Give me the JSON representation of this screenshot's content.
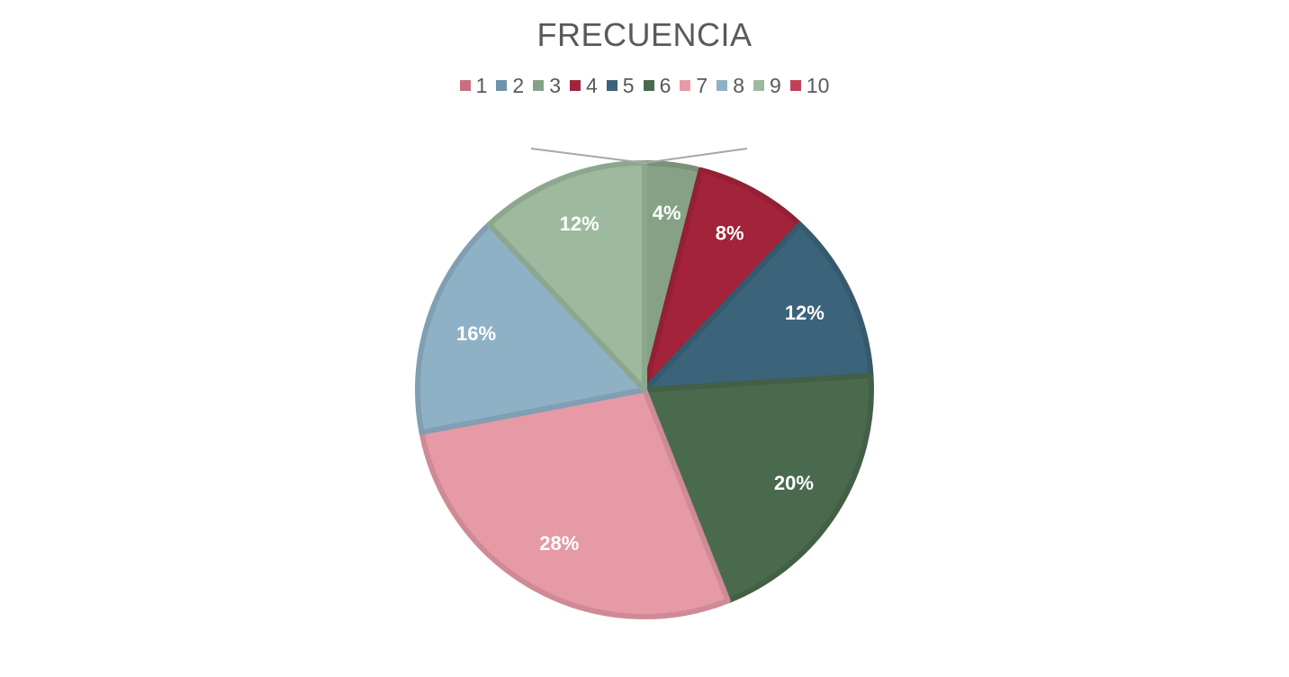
{
  "chart_data": {
    "type": "pie",
    "title": "FRECUENCIA",
    "legend_position": "top",
    "categories": [
      "1",
      "2",
      "3",
      "4",
      "5",
      "6",
      "7",
      "8",
      "9",
      "10"
    ],
    "values": [
      0,
      0,
      4,
      8,
      12,
      20,
      28,
      16,
      12,
      0
    ],
    "data_labels": [
      "",
      "",
      "4%",
      "8%",
      "12%",
      "20%",
      "28%",
      "16%",
      "12%",
      ""
    ],
    "colors": [
      "#c8707f",
      "#6f94aa",
      "#87a184",
      "#a3233a",
      "#3b6379",
      "#4a6a4e",
      "#e59aa6",
      "#8fb1c6",
      "#9dba9e",
      "#c24158"
    ],
    "start_angle_deg": 0,
    "direction": "clockwise"
  }
}
